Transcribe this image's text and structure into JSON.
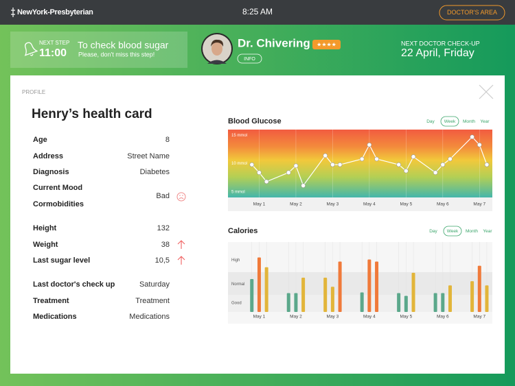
{
  "header": {
    "logo": "NewYork-Presbyterian",
    "time": "8:25 AM",
    "button": "DOCTOR'S AREA"
  },
  "next_step": {
    "label": "NEXT STEP",
    "time": "11:00",
    "title": "To check blood sugar",
    "note": "Please, don't miss this step!"
  },
  "doctor": {
    "name": "Dr. Chivering",
    "rating": "★★★★",
    "info": "INFO"
  },
  "next_checkup": {
    "label": "NEXT DOCTOR CHECK-UP",
    "date": "22 April, Friday"
  },
  "profile": {
    "section": "PROFILE",
    "title": "Henry’s health card",
    "rows": [
      {
        "label": "Age",
        "value": "8"
      },
      {
        "label": "Address",
        "value": "Street Name"
      },
      {
        "label": "Diagnosis",
        "value": "Diabetes"
      },
      {
        "label": "Current Mood",
        "value": "Bad"
      },
      {
        "label": "Cormobidities"
      },
      {
        "label": "Height",
        "value": "132"
      },
      {
        "label": "Weight",
        "value": "38"
      },
      {
        "label": "Last sugar level",
        "value": "10,5"
      },
      {
        "label": "Last doctor's check up",
        "value": "Saturday"
      },
      {
        "label": "Treatment",
        "value": "Treatment"
      },
      {
        "label": "Medications",
        "value": "Medications"
      }
    ]
  },
  "chart_data": [
    {
      "type": "line",
      "title": "Blood Glucose",
      "tabs": [
        "Day",
        "Week",
        "Month",
        "Year"
      ],
      "active_tab": 1,
      "x": [
        0.8,
        1,
        1.2,
        1.8,
        2,
        2.2,
        2.8,
        3,
        3.2,
        3.8,
        4,
        4.2,
        4.8,
        5,
        5.2,
        5.8,
        6,
        6.2,
        6.8,
        7,
        7.2
      ],
      "values": [
        9.8,
        8.4,
        6.8,
        8.4,
        9.6,
        6.1,
        11.4,
        9.8,
        9.8,
        10.8,
        13.3,
        10.8,
        9.8,
        8.7,
        11.2,
        8.4,
        9.8,
        10.8,
        14.7,
        13.3,
        9.8
      ],
      "color": "#ffffff",
      "xlim": [
        0.15,
        7.35
      ],
      "xticks": [
        {
          "value": 1,
          "label": "May 1"
        },
        {
          "value": 2,
          "label": "May 2"
        },
        {
          "value": 3,
          "label": "May 3"
        },
        {
          "value": 4,
          "label": "May 4"
        },
        {
          "value": 5,
          "label": "May 5"
        },
        {
          "value": 6,
          "label": "May 6"
        },
        {
          "value": 7,
          "label": "May 7"
        }
      ],
      "ylim": [
        4,
        16
      ],
      "yticks": [
        {
          "value": 15,
          "label": "15 mmol"
        },
        {
          "value": 10,
          "label": "10 mmol"
        },
        {
          "value": 5,
          "label": "5 mmol"
        }
      ]
    },
    {
      "type": "bar",
      "title": "Calories",
      "tabs": [
        "Day",
        "Week",
        "Month",
        "Year"
      ],
      "active_tab": 1,
      "x": [
        0.8,
        1,
        1.2,
        1.8,
        2,
        2.2,
        2.8,
        3,
        3.2,
        3.8,
        4,
        4.2,
        4.8,
        5,
        5.2,
        5.8,
        6,
        6.2,
        6.8,
        7,
        7.2
      ],
      "values": [
        47,
        78,
        64,
        27,
        27,
        49,
        49,
        36,
        72,
        28,
        75,
        72,
        27,
        23,
        56,
        27,
        27,
        38,
        44,
        66,
        38
      ],
      "colors": [
        "#5ba88b",
        "#f07a3a",
        "#e2b53a",
        "#5ba88b",
        "#5ba88b",
        "#e2b53a",
        "#e2b53a",
        "#e2b53a",
        "#f07a3a",
        "#5ba88b",
        "#f07a3a",
        "#f07a3a",
        "#5ba88b",
        "#5ba88b",
        "#e2b53a",
        "#5ba88b",
        "#5ba88b",
        "#e2b53a",
        "#e2b53a",
        "#f07a3a",
        "#e2b53a"
      ],
      "xlim": [
        0.15,
        7.35
      ],
      "xticks": [
        {
          "value": 1,
          "label": "May 1"
        },
        {
          "value": 2,
          "label": "May 2"
        },
        {
          "value": 3,
          "label": "May 3"
        },
        {
          "value": 4,
          "label": "May 4"
        },
        {
          "value": 5,
          "label": "May 5"
        },
        {
          "value": 6,
          "label": "May 6"
        },
        {
          "value": 7,
          "label": "May 7"
        }
      ],
      "ylim": [
        0,
        100
      ],
      "yticks": [
        {
          "value": 74,
          "label": "High"
        },
        {
          "value": 40,
          "label": "Normal"
        },
        {
          "value": 13,
          "label": "Good"
        }
      ]
    }
  ]
}
